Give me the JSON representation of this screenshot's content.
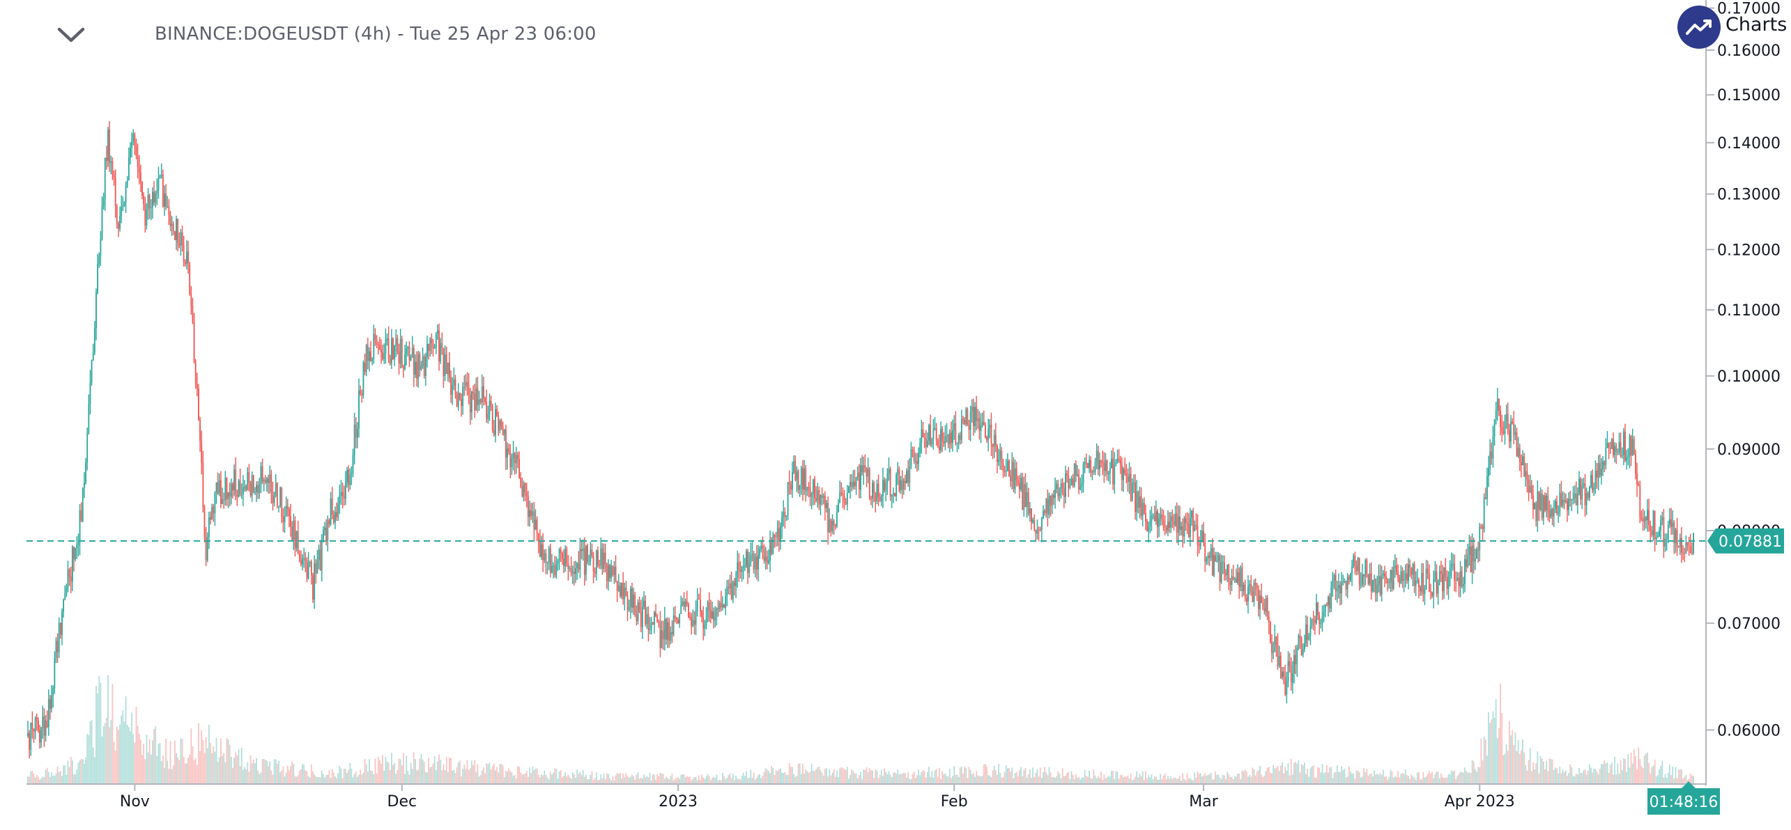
{
  "header": {
    "symbol_title": "BINANCE:DOGEUSDT (4h) - Tue 25 Apr 23 06:00",
    "brand_label": "Charts"
  },
  "colors": {
    "up": "#26a69a",
    "down": "#ef5350",
    "volume_up": "#b2dfdb",
    "volume_down": "#f8c4c2",
    "price_line": "#26a69a",
    "brand": "#2e3a8c"
  },
  "icons": {
    "toggle": "chevron-down-icon",
    "brand": "trending-up-icon"
  },
  "chart_data": {
    "type": "candlestick",
    "interval": "4h",
    "y_scale": "log",
    "ylim": [
      0.0555,
      0.172
    ],
    "price_ticks": [
      "0.06000",
      "0.07000",
      "0.08000",
      "0.09000",
      "0.10000",
      "0.11000",
      "0.12000",
      "0.13000",
      "0.14000",
      "0.15000",
      "0.16000",
      "0.17000"
    ],
    "time_labels": [
      "Nov",
      "Dec",
      "2023",
      "Feb",
      "Mar",
      "Apr 2023"
    ],
    "last_price": "0.07881",
    "countdown": "01:48:16",
    "price_path": [
      [
        "2022-10-20",
        0.0595
      ],
      [
        "2022-10-22",
        0.0605
      ],
      [
        "2022-10-24",
        0.072
      ],
      [
        "2022-10-26",
        0.082
      ],
      [
        "2022-10-28",
        0.12
      ],
      [
        "2022-10-29",
        0.142
      ],
      [
        "2022-10-30",
        0.125
      ],
      [
        "2022-11-01",
        0.14
      ],
      [
        "2022-11-02",
        0.126
      ],
      [
        "2022-11-04",
        0.131
      ],
      [
        "2022-11-05",
        0.126
      ],
      [
        "2022-11-07",
        0.117
      ],
      [
        "2022-11-08",
        0.098
      ],
      [
        "2022-11-09",
        0.078
      ],
      [
        "2022-11-10",
        0.084
      ],
      [
        "2022-11-13",
        0.086
      ],
      [
        "2022-11-16",
        0.086
      ],
      [
        "2022-11-18",
        0.082
      ],
      [
        "2022-11-21",
        0.074
      ],
      [
        "2022-11-23",
        0.082
      ],
      [
        "2022-11-25",
        0.086
      ],
      [
        "2022-11-27",
        0.104
      ],
      [
        "2022-11-30",
        0.104
      ],
      [
        "2022-12-03",
        0.101
      ],
      [
        "2022-12-05",
        0.105
      ],
      [
        "2022-12-07",
        0.097
      ],
      [
        "2022-12-10",
        0.097
      ],
      [
        "2022-12-13",
        0.09
      ],
      [
        "2022-12-15",
        0.084
      ],
      [
        "2022-12-17",
        0.077
      ],
      [
        "2022-12-20",
        0.076
      ],
      [
        "2022-12-23",
        0.077
      ],
      [
        "2022-12-27",
        0.072
      ],
      [
        "2022-12-30",
        0.069
      ],
      [
        "2023-01-02",
        0.071
      ],
      [
        "2023-01-05",
        0.071
      ],
      [
        "2023-01-09",
        0.077
      ],
      [
        "2023-01-12",
        0.078
      ],
      [
        "2023-01-14",
        0.087
      ],
      [
        "2023-01-16",
        0.085
      ],
      [
        "2023-01-18",
        0.081
      ],
      [
        "2023-01-21",
        0.087
      ],
      [
        "2023-01-23",
        0.085
      ],
      [
        "2023-01-26",
        0.086
      ],
      [
        "2023-01-29",
        0.092
      ],
      [
        "2023-01-31",
        0.091
      ],
      [
        "2023-02-03",
        0.094
      ],
      [
        "2023-02-05",
        0.092
      ],
      [
        "2023-02-08",
        0.086
      ],
      [
        "2023-02-10",
        0.081
      ],
      [
        "2023-02-12",
        0.083
      ],
      [
        "2023-02-14",
        0.086
      ],
      [
        "2023-02-17",
        0.088
      ],
      [
        "2023-02-20",
        0.087
      ],
      [
        "2023-02-22",
        0.082
      ],
      [
        "2023-02-25",
        0.08
      ],
      [
        "2023-02-28",
        0.081
      ],
      [
        "2023-03-02",
        0.076
      ],
      [
        "2023-03-05",
        0.075
      ],
      [
        "2023-03-08",
        0.071
      ],
      [
        "2023-03-10",
        0.064
      ],
      [
        "2023-03-12",
        0.068
      ],
      [
        "2023-03-15",
        0.073
      ],
      [
        "2023-03-18",
        0.076
      ],
      [
        "2023-03-21",
        0.074
      ],
      [
        "2023-03-24",
        0.075
      ],
      [
        "2023-03-27",
        0.074
      ],
      [
        "2023-03-30",
        0.075
      ],
      [
        "2023-04-01",
        0.079
      ],
      [
        "2023-04-03",
        0.095
      ],
      [
        "2023-04-05",
        0.091
      ],
      [
        "2023-04-07",
        0.083
      ],
      [
        "2023-04-10",
        0.083
      ],
      [
        "2023-04-13",
        0.085
      ],
      [
        "2023-04-15",
        0.089
      ],
      [
        "2023-04-18",
        0.091
      ],
      [
        "2023-04-19",
        0.083
      ],
      [
        "2023-04-21",
        0.08
      ],
      [
        "2023-04-25",
        0.0788
      ]
    ],
    "volume": [
      [
        "2022-10-20",
        0.08
      ],
      [
        "2022-10-26",
        0.25
      ],
      [
        "2022-10-28",
        0.8
      ],
      [
        "2022-11-01",
        0.55
      ],
      [
        "2022-11-05",
        0.3
      ],
      [
        "2022-11-09",
        0.45
      ],
      [
        "2022-11-15",
        0.18
      ],
      [
        "2022-11-23",
        0.12
      ],
      [
        "2022-11-30",
        0.22
      ],
      [
        "2022-12-05",
        0.2
      ],
      [
        "2022-12-15",
        0.12
      ],
      [
        "2022-12-25",
        0.08
      ],
      [
        "2023-01-05",
        0.07
      ],
      [
        "2023-01-14",
        0.15
      ],
      [
        "2023-01-25",
        0.1
      ],
      [
        "2023-02-05",
        0.14
      ],
      [
        "2023-02-15",
        0.1
      ],
      [
        "2023-02-25",
        0.08
      ],
      [
        "2023-03-05",
        0.09
      ],
      [
        "2023-03-10",
        0.18
      ],
      [
        "2023-03-20",
        0.1
      ],
      [
        "2023-03-30",
        0.09
      ],
      [
        "2023-04-03",
        0.9
      ],
      [
        "2023-04-05",
        0.35
      ],
      [
        "2023-04-12",
        0.12
      ],
      [
        "2023-04-19",
        0.25
      ],
      [
        "2023-04-25",
        0.08
      ]
    ]
  }
}
